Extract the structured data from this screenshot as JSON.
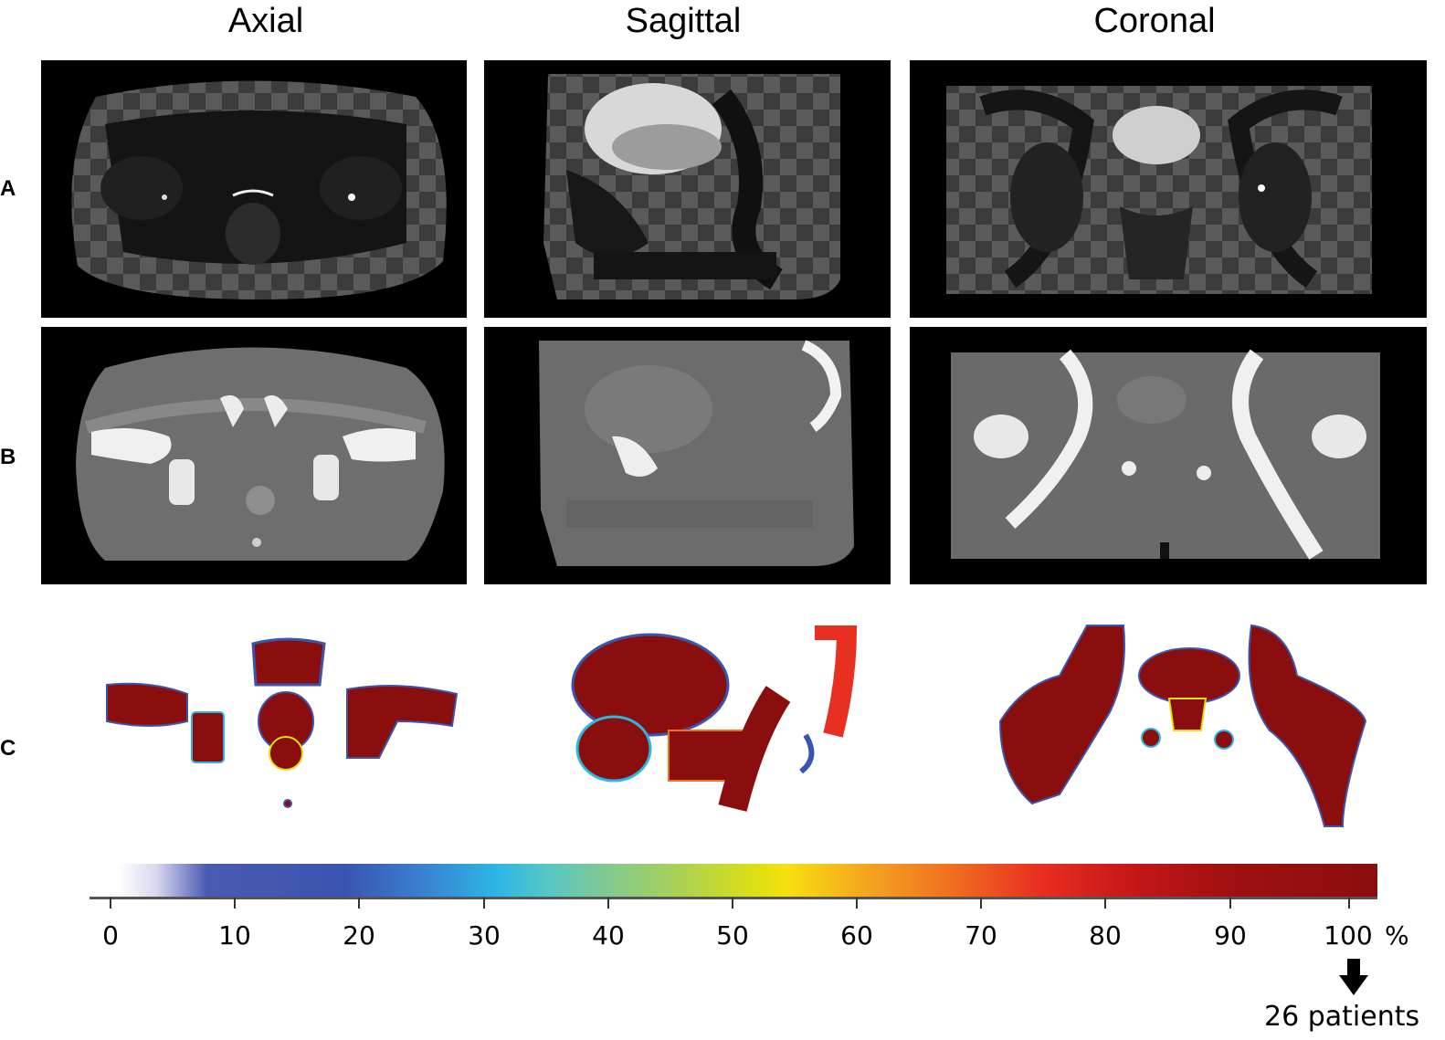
{
  "columns": [
    "Axial",
    "Sagittal",
    "Coronal"
  ],
  "rows": [
    "A",
    "B",
    "C"
  ],
  "colorbar": {
    "ticks": [
      "0",
      "10",
      "20",
      "30",
      "40",
      "50",
      "60",
      "70",
      "80",
      "90",
      "100"
    ],
    "unit": "%",
    "note": "26 patients",
    "colors": [
      "#ffffff",
      "#3a55b0",
      "#2cb6e6",
      "#e0e010",
      "#f07020",
      "#8b0e0e"
    ]
  },
  "icons": [
    "down-arrow-icon"
  ]
}
